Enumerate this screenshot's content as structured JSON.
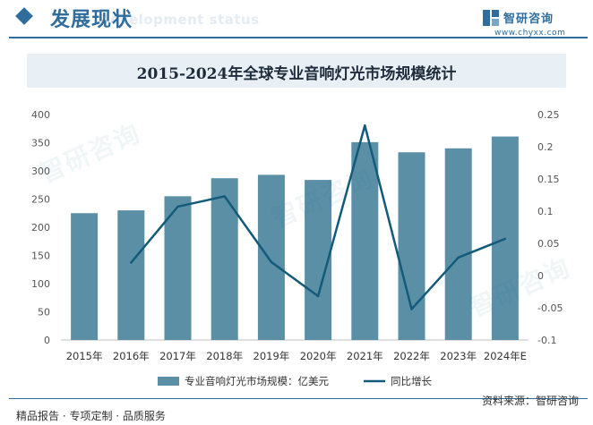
{
  "header": {
    "section_title": "发展现状",
    "section_ghost": "Development status",
    "brand_name": "智研咨询",
    "brand_url": "www.chyxx.com"
  },
  "footer": {
    "services": "精品报告 · 专项定制 · 品质服务",
    "source": "资料来源：智研咨询"
  },
  "watermark_text": "智研咨询",
  "chart_data": {
    "type": "bar",
    "title": "2015-2024年全球专业音响灯光市场规模统计",
    "categories": [
      "2015年",
      "2016年",
      "2017年",
      "2018年",
      "2019年",
      "2020年",
      "2021年",
      "2022年",
      "2023年",
      "2024年E"
    ],
    "series": [
      {
        "name": "专业音响灯光市场规模：亿美元",
        "type": "bar",
        "axis": "left",
        "color": "#5b8fa6",
        "values": [
          225,
          230,
          255,
          287,
          293,
          284,
          351,
          333,
          340,
          361
        ]
      },
      {
        "name": "同比增长",
        "type": "line",
        "axis": "right",
        "color": "#135b7a",
        "values": [
          null,
          0.02,
          0.107,
          0.123,
          0.021,
          -0.032,
          0.233,
          -0.052,
          0.028,
          0.057
        ]
      }
    ],
    "y_left": {
      "min": 0,
      "max": 400,
      "ticks": [
        0,
        50,
        100,
        150,
        200,
        250,
        300,
        350,
        400
      ]
    },
    "y_right": {
      "min": -0.1,
      "max": 0.25,
      "ticks": [
        -0.1,
        -0.05,
        0,
        0.05,
        0.1,
        0.15,
        0.2,
        0.25
      ],
      "tick_labels": [
        "-0.1",
        "-0.05",
        "0",
        "0.05",
        "0.1",
        "0.15",
        "0.2",
        "0.25"
      ]
    },
    "grid": false,
    "legend_position": "bottom-center"
  }
}
